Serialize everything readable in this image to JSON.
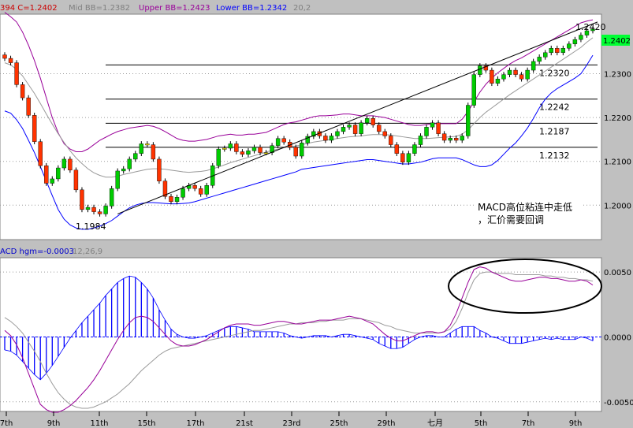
{
  "header": {
    "price": "394 C=1.2402",
    "mid": "Mid BB=1.2382",
    "upper": "Upper BB=1.2423",
    "lower": "Lower BB=1.2342",
    "params": "20,2"
  },
  "macd_header": {
    "label": "ACD hgm=-0.0003",
    "params": "12,26,9"
  },
  "last_price": "1.2402",
  "low_label": "1.1984",
  "annotation": {
    "line1": "MACD高位粘连中走低",
    "line2": "，汇价需要回调"
  },
  "colors": {
    "background": "#c0c0c0",
    "plot": "#ffffff",
    "bull": "#00cc00",
    "bear": "#ff3300",
    "doji": "#ffee00",
    "upper_band": "#990099",
    "lower_band": "#0000ff",
    "mid_band": "#999999",
    "histogram": "#0000ff",
    "price_tag": "#00ff33"
  },
  "chart_data": [
    {
      "type": "candlestick",
      "title": "",
      "indicator": "Bollinger Bands (20,2)",
      "ylim": [
        1.1925,
        1.2425
      ],
      "y_ticks": [
        "1.2300",
        "1.2200",
        "1.2100",
        "1.2000"
      ],
      "x_ticks": [
        "7th",
        "9th",
        "11th",
        "15th",
        "17th",
        "21st",
        "23rd",
        "25th",
        "29th",
        "七月",
        "5th",
        "7th",
        "9th"
      ],
      "close": [
        1.2335,
        1.2325,
        1.2275,
        1.2245,
        1.2205,
        1.2145,
        1.209,
        1.205,
        1.206,
        1.2085,
        1.2105,
        1.208,
        1.2035,
        1.199,
        1.1995,
        1.1985,
        1.198,
        1.1998,
        1.2038,
        1.2078,
        1.2083,
        1.2105,
        1.2118,
        1.214,
        1.2138,
        1.2105,
        1.2055,
        1.202,
        1.2008,
        1.2018,
        1.2038,
        1.2045,
        1.2038,
        1.2025,
        1.2045,
        1.209,
        1.2128,
        1.213,
        1.214,
        1.2122,
        1.2116,
        1.2124,
        1.2132,
        1.212,
        1.212,
        1.2136,
        1.2152,
        1.2144,
        1.2132,
        1.2112,
        1.2142,
        1.2157,
        1.2168,
        1.2158,
        1.2148,
        1.2158,
        1.2168,
        1.2178,
        1.2183,
        1.2163,
        1.2188,
        1.2198,
        1.2183,
        1.2168,
        1.2158,
        1.2138,
        1.2118,
        1.2098,
        1.2118,
        1.2138,
        1.2158,
        1.2178,
        1.2188,
        1.2163,
        1.2148,
        1.2153,
        1.2148,
        1.2158,
        1.2228,
        1.2298,
        1.2318,
        1.2308,
        1.2278,
        1.2288,
        1.2298,
        1.2308,
        1.2298,
        1.2288,
        1.2308,
        1.2328,
        1.2338,
        1.2348,
        1.2358,
        1.2348,
        1.2358,
        1.2368,
        1.2378,
        1.2388,
        1.2398,
        1.2402
      ],
      "upper_band": [
        1.244,
        1.243,
        1.2418,
        1.2395,
        1.2365,
        1.233,
        1.229,
        1.2245,
        1.22,
        1.2165,
        1.214,
        1.2128,
        1.2122,
        1.2122,
        1.2128,
        1.2138,
        1.2148,
        1.2155,
        1.2162,
        1.2168,
        1.2172,
        1.2176,
        1.2178,
        1.218,
        1.2182,
        1.218,
        1.2175,
        1.2168,
        1.216,
        1.2152,
        1.2148,
        1.2146,
        1.2146,
        1.2148,
        1.215,
        1.2154,
        1.2158,
        1.216,
        1.2162,
        1.216,
        1.216,
        1.2162,
        1.2162,
        1.2164,
        1.2166,
        1.2172,
        1.2178,
        1.2184,
        1.2188,
        1.219,
        1.2194,
        1.2198,
        1.2202,
        1.2204,
        1.2204,
        1.2205,
        1.2206,
        1.2208,
        1.2208,
        1.2206,
        1.2204,
        1.2204,
        1.2204,
        1.2202,
        1.22,
        1.2196,
        1.2192,
        1.2188,
        1.2184,
        1.2182,
        1.2182,
        1.2184,
        1.2186,
        1.2186,
        1.2186,
        1.2186,
        1.2186,
        1.2196,
        1.2214,
        1.2236,
        1.2258,
        1.2276,
        1.229,
        1.2302,
        1.2312,
        1.2322,
        1.233,
        1.2336,
        1.2344,
        1.2352,
        1.236,
        1.2368,
        1.2376,
        1.2384,
        1.2392,
        1.24,
        1.2408,
        1.2416,
        1.242,
        1.2423
      ],
      "mid_band": [
        1.2325,
        1.232,
        1.231,
        1.2295,
        1.2275,
        1.2255,
        1.2232,
        1.2208,
        1.2185,
        1.2163,
        1.2143,
        1.2124,
        1.2108,
        1.2095,
        1.2083,
        1.2074,
        1.2068,
        1.2064,
        1.2064,
        1.2066,
        1.207,
        1.2073,
        1.2076,
        1.2079,
        1.2082,
        1.2083,
        1.2083,
        1.2082,
        1.208,
        1.2078,
        1.2076,
        1.2075,
        1.2076,
        1.2077,
        1.2079,
        1.2083,
        1.2087,
        1.2092,
        1.2097,
        1.2101,
        1.2105,
        1.2109,
        1.2113,
        1.2117,
        1.2121,
        1.2125,
        1.2128,
        1.2131,
        1.2133,
        1.2135,
        1.2138,
        1.2141,
        1.2144,
        1.2146,
        1.2148,
        1.215,
        1.2152,
        1.2154,
        1.2156,
        1.2157,
        1.2158,
        1.216,
        1.2161,
        1.2161,
        1.2161,
        1.216,
        1.2158,
        1.2156,
        1.2154,
        1.2152,
        1.2152,
        1.2152,
        1.2153,
        1.2154,
        1.2155,
        1.2156,
        1.2157,
        1.2162,
        1.2172,
        1.2186,
        1.22,
        1.2212,
        1.2222,
        1.2232,
        1.2242,
        1.2252,
        1.2261,
        1.227,
        1.2279,
        1.2288,
        1.2297,
        1.2306,
        1.2315,
        1.2324,
        1.2333,
        1.2342,
        1.2351,
        1.236,
        1.2372,
        1.2382
      ],
      "lower_band": [
        1.2215,
        1.221,
        1.2195,
        1.2175,
        1.2148,
        1.212,
        1.2088,
        1.2055,
        1.2022,
        1.199,
        1.1968,
        1.1955,
        1.1948,
        1.1945,
        1.1945,
        1.1948,
        1.1952,
        1.1958,
        1.1965,
        1.1975,
        1.1985,
        1.1994,
        1.2,
        1.2004,
        1.2006,
        1.2006,
        1.2005,
        1.2004,
        1.2003,
        1.2003,
        1.2004,
        1.2005,
        1.2008,
        1.2012,
        1.2016,
        1.202,
        1.2024,
        1.2028,
        1.2032,
        1.2036,
        1.204,
        1.2044,
        1.2048,
        1.2052,
        1.2056,
        1.206,
        1.2064,
        1.2068,
        1.2072,
        1.2076,
        1.2082,
        1.2084,
        1.2086,
        1.2088,
        1.209,
        1.2092,
        1.2094,
        1.2096,
        1.2098,
        1.21,
        1.2102,
        1.2104,
        1.2104,
        1.2102,
        1.21,
        1.2098,
        1.2096,
        1.2094,
        1.2094,
        1.2096,
        1.2098,
        1.2102,
        1.2106,
        1.2108,
        1.2108,
        1.2108,
        1.2108,
        1.2104,
        1.2098,
        1.2092,
        1.2088,
        1.2088,
        1.2092,
        1.2102,
        1.2116,
        1.213,
        1.2142,
        1.2158,
        1.2176,
        1.2198,
        1.2222,
        1.2242,
        1.2256,
        1.2266,
        1.2274,
        1.2282,
        1.229,
        1.23,
        1.232,
        1.2342
      ],
      "fib_levels": [
        1.232,
        1.2242,
        1.2187,
        1.2132
      ],
      "fib_labels": [
        "1.2320",
        "1.2242",
        "1.2187",
        "1.2132"
      ],
      "trendline": {
        "from": 1.198,
        "to": 1.2418,
        "top_label": "1.2420"
      },
      "low": 1.1984
    },
    {
      "type": "macd",
      "series_label": "ACD hgm=-0.0003",
      "params": "12,26,9",
      "ylim": [
        -0.0055,
        0.0058
      ],
      "y_ticks": [
        "0.0050",
        "0.0000",
        "-0.0050"
      ],
      "y_values": [
        0.005,
        0,
        -0.005
      ],
      "macd": [
        0.0005,
        0.0001,
        -0.0006,
        -0.0016,
        -0.0028,
        -0.004,
        -0.0052,
        -0.0056,
        -0.0058,
        -0.0058,
        -0.0056,
        -0.0053,
        -0.0049,
        -0.0044,
        -0.0039,
        -0.0033,
        -0.0026,
        -0.0018,
        -0.001,
        -0.0002,
        0.0005,
        0.0011,
        0.0015,
        0.0016,
        0.0015,
        0.0012,
        0.0007,
        0.0002,
        -0.0003,
        -0.0006,
        -0.0007,
        -0.0007,
        -0.0006,
        -0.0004,
        -0.0002,
        0.0001,
        0.0004,
        0.0007,
        0.0009,
        0.001,
        0.001,
        0.001,
        0.0009,
        0.0009,
        0.001,
        0.0011,
        0.0012,
        0.0012,
        0.0011,
        0.001,
        0.001,
        0.0011,
        0.0012,
        0.0013,
        0.0013,
        0.0013,
        0.0014,
        0.0015,
        0.0016,
        0.0015,
        0.0014,
        0.0012,
        0.001,
        0.0006,
        0.0002,
        -0.0001,
        -0.0003,
        -0.0003,
        -0.0001,
        0.0001,
        0.0003,
        0.0004,
        0.0004,
        0.0003,
        0.0004,
        0.0009,
        0.0018,
        0.003,
        0.0042,
        0.0052,
        0.0054,
        0.0053,
        0.005,
        0.0048,
        0.0046,
        0.0044,
        0.0043,
        0.0043,
        0.0044,
        0.0045,
        0.0046,
        0.0046,
        0.0045,
        0.0045,
        0.0044,
        0.0043,
        0.0043,
        0.0044,
        0.0043,
        0.004
      ],
      "signal": [
        0.0015,
        0.0012,
        0.0008,
        0.0003,
        -0.0004,
        -0.0011,
        -0.0019,
        -0.0028,
        -0.0036,
        -0.0043,
        -0.0048,
        -0.0052,
        -0.0054,
        -0.0055,
        -0.0055,
        -0.0054,
        -0.0052,
        -0.005,
        -0.0047,
        -0.0044,
        -0.004,
        -0.0036,
        -0.0031,
        -0.0026,
        -0.0022,
        -0.0018,
        -0.0014,
        -0.0011,
        -0.0009,
        -0.0008,
        -0.0007,
        -0.0006,
        -0.0005,
        -0.0004,
        -0.0003,
        -0.0002,
        -0.0001,
        0,
        0.0001,
        0.0002,
        0.0003,
        0.0004,
        0.0005,
        0.0005,
        0.0006,
        0.0007,
        0.0008,
        0.0009,
        0.001,
        0.001,
        0.0011,
        0.0011,
        0.0011,
        0.0012,
        0.0012,
        0.0013,
        0.0013,
        0.0013,
        0.0014,
        0.0014,
        0.0014,
        0.0013,
        0.0012,
        0.0011,
        0.0009,
        0.0008,
        0.0006,
        0.0005,
        0.0004,
        0.0003,
        0.0003,
        0.0003,
        0.0003,
        0.0003,
        0.0004,
        0.0006,
        0.0012,
        0.0022,
        0.0034,
        0.0044,
        0.0049,
        0.005,
        0.005,
        0.0049,
        0.0049,
        0.0049,
        0.0048,
        0.0048,
        0.0048,
        0.0048,
        0.0048,
        0.0047,
        0.0047,
        0.0046,
        0.0046,
        0.0045,
        0.0045,
        0.0044,
        0.0044,
        0.0043
      ],
      "histogram": [
        -0.001,
        -0.0011,
        -0.0014,
        -0.0019,
        -0.0024,
        -0.0029,
        -0.0033,
        -0.0028,
        -0.0022,
        -0.0015,
        -0.0008,
        -0.0001,
        0.0005,
        0.0011,
        0.0016,
        0.0021,
        0.0026,
        0.0032,
        0.0037,
        0.0042,
        0.0045,
        0.0047,
        0.0046,
        0.0042,
        0.0037,
        0.003,
        0.0021,
        0.0013,
        0.0006,
        0.0002,
        0,
        -0.0001,
        -0.0001,
        0,
        0.0001,
        0.0003,
        0.0005,
        0.0007,
        0.0008,
        0.0008,
        0.0007,
        0.0006,
        0.0004,
        0.0004,
        0.0004,
        0.0004,
        0.0004,
        0.0003,
        0.0001,
        0,
        -0.0001,
        0,
        0.0001,
        0.0001,
        0.0001,
        0,
        0.0001,
        0.0002,
        0.0002,
        0.0001,
        0,
        -0.0001,
        -0.0002,
        -0.0005,
        -0.0007,
        -0.0009,
        -0.0009,
        -0.0008,
        -0.0005,
        -0.0002,
        0,
        0.0001,
        0.0001,
        0,
        0,
        0.0003,
        0.0006,
        0.0008,
        0.0008,
        0.0008,
        0.0005,
        0.0003,
        0,
        -0.0001,
        -0.0003,
        -0.0005,
        -0.0005,
        -0.0005,
        -0.0004,
        -0.0003,
        -0.0002,
        -0.0001,
        -0.0002,
        -0.0001,
        -0.0002,
        -0.0002,
        -0.0002,
        0,
        -0.0001,
        -0.0003
      ]
    }
  ]
}
